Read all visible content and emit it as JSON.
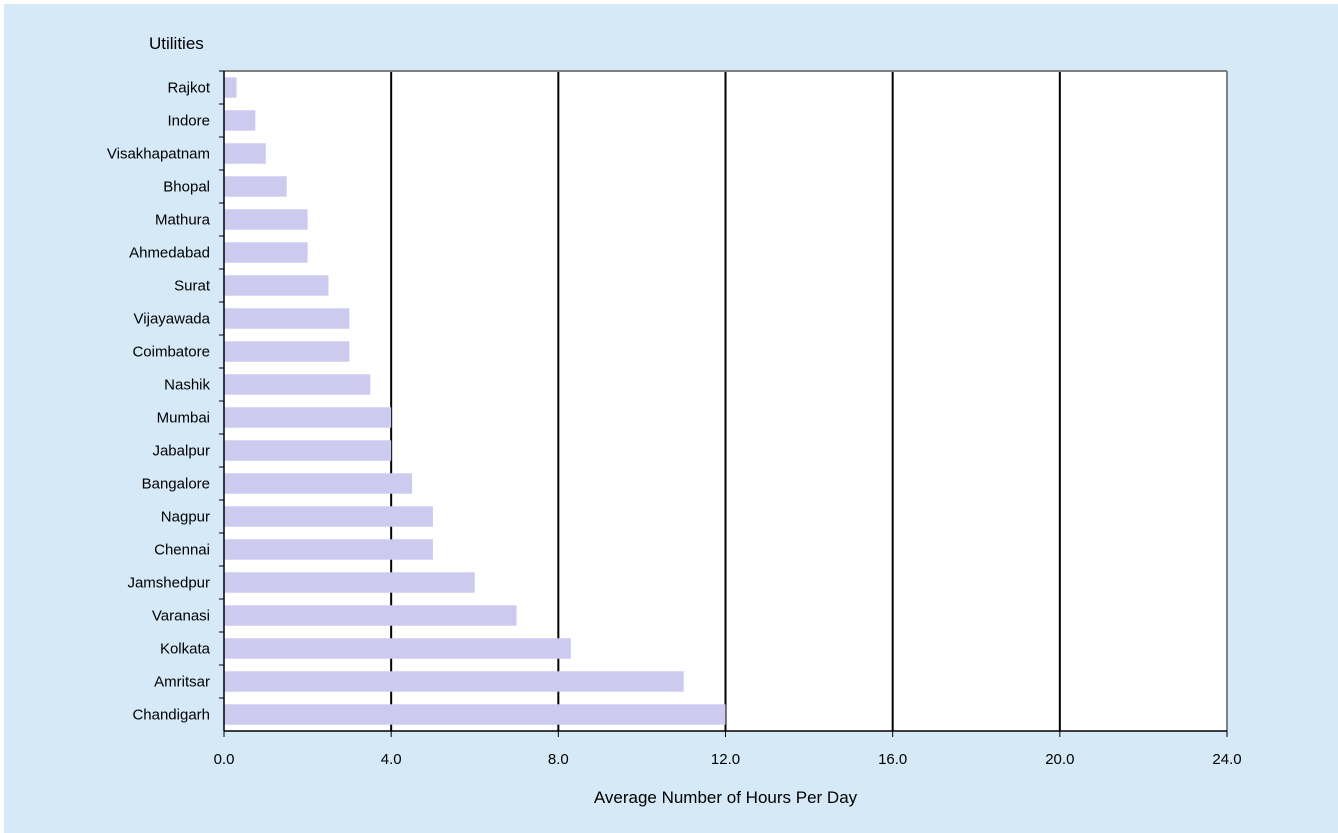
{
  "chart_data": {
    "type": "bar",
    "orientation": "horizontal",
    "title": "",
    "ylabel": "Utilities",
    "xlabel": "Average Number of Hours Per Day",
    "xlim": [
      0,
      24
    ],
    "xticks": [
      "0.0",
      "4.0",
      "8.0",
      "12.0",
      "16.0",
      "20.0",
      "24.0"
    ],
    "xtick_values": [
      0,
      4,
      8,
      12,
      16,
      20,
      24
    ],
    "grid": "vertical major gridlines",
    "legend": "none",
    "categories": [
      "Rajkot",
      "Indore",
      "Visakhapatnam",
      "Bhopal",
      "Mathura",
      "Ahmedabad",
      "Surat",
      "Vijayawada",
      "Coimbatore",
      "Nashik",
      "Mumbai",
      "Jabalpur",
      "Bangalore",
      "Nagpur",
      "Chennai",
      "Jamshedpur",
      "Varanasi",
      "Kolkata",
      "Amritsar",
      "Chandigarh"
    ],
    "values": [
      0.3,
      0.75,
      1.0,
      1.5,
      2.0,
      2.0,
      2.5,
      3.0,
      3.0,
      3.5,
      4.0,
      4.0,
      4.5,
      5.0,
      5.0,
      6.0,
      7.0,
      8.3,
      11.0,
      12.0
    ],
    "colors": {
      "bar": "#cccbef",
      "panel_background": "#d5e9f7",
      "plot_background": "#ffffff",
      "gridline": "#000000",
      "plot_border": "#808080"
    }
  }
}
